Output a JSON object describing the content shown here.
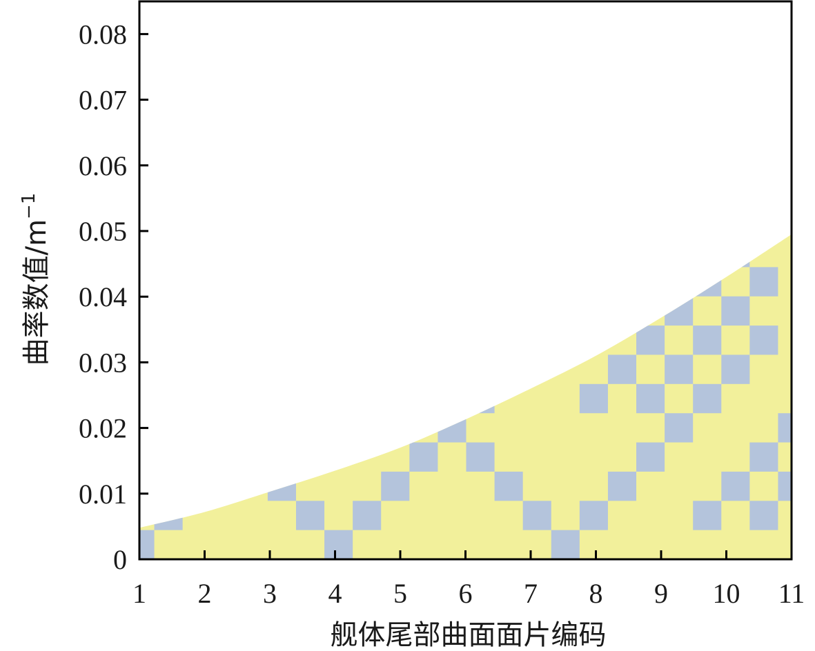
{
  "chart_data": {
    "type": "area",
    "title": "",
    "xlabel": "舰体尾部曲面面片编码",
    "ylabel": "曲率数值/m",
    "ylabel_superscript": "−1",
    "xlim": [
      1,
      11
    ],
    "ylim": [
      0,
      0.085
    ],
    "x_ticks": [
      1,
      2,
      3,
      4,
      5,
      6,
      7,
      8,
      9,
      10,
      11
    ],
    "x_tick_labels": [
      "1",
      "2",
      "3",
      "4",
      "5",
      "6",
      "7",
      "8",
      "9",
      "10",
      "11"
    ],
    "y_ticks": [
      0,
      0.01,
      0.02,
      0.03,
      0.04,
      0.05,
      0.06,
      0.07,
      0.08
    ],
    "y_tick_labels": [
      "0",
      "0.01",
      "0.02",
      "0.03",
      "0.04",
      "0.05",
      "0.06",
      "0.07",
      "0.08"
    ],
    "grid": false,
    "series": [
      {
        "x": [
          1,
          2,
          3,
          4,
          5,
          6,
          7,
          8,
          9,
          10,
          11
        ],
        "values": [
          0.0048,
          0.0072,
          0.0103,
          0.0135,
          0.017,
          0.0213,
          0.026,
          0.031,
          0.0368,
          0.043,
          0.0495
        ],
        "color": "#f2f09b"
      }
    ],
    "pattern_color": "#b4c4dc",
    "pattern": {
      "x_min": 1,
      "x_max": 11,
      "cells_x": 23,
      "y_min": 0,
      "y_max": 0.0445,
      "cells_y": 10,
      "squares": [
        [
          0,
          0
        ],
        [
          1,
          1
        ],
        [
          2,
          2
        ],
        [
          5,
          2
        ],
        [
          6,
          1
        ],
        [
          7,
          0
        ],
        [
          8,
          1
        ],
        [
          9,
          2
        ],
        [
          10,
          3
        ],
        [
          11,
          4
        ],
        [
          12,
          5
        ],
        [
          13,
          6
        ],
        [
          10,
          5
        ],
        [
          11,
          4
        ],
        [
          12,
          3
        ],
        [
          13,
          2
        ],
        [
          14,
          1
        ],
        [
          15,
          0
        ],
        [
          16,
          1
        ],
        [
          17,
          2
        ],
        [
          18,
          3
        ],
        [
          19,
          4
        ],
        [
          16,
          5
        ],
        [
          17,
          6
        ],
        [
          18,
          7
        ],
        [
          19,
          8
        ],
        [
          20,
          9
        ],
        [
          21,
          10
        ],
        [
          22,
          9
        ],
        [
          18,
          5
        ],
        [
          19,
          6
        ],
        [
          20,
          7
        ],
        [
          21,
          8
        ],
        [
          22,
          9
        ],
        [
          20,
          5
        ],
        [
          21,
          6
        ],
        [
          22,
          7
        ],
        [
          20,
          1
        ],
        [
          21,
          2
        ],
        [
          22,
          3
        ],
        [
          23,
          4
        ],
        [
          22,
          1
        ],
        [
          23,
          2
        ]
      ]
    }
  }
}
